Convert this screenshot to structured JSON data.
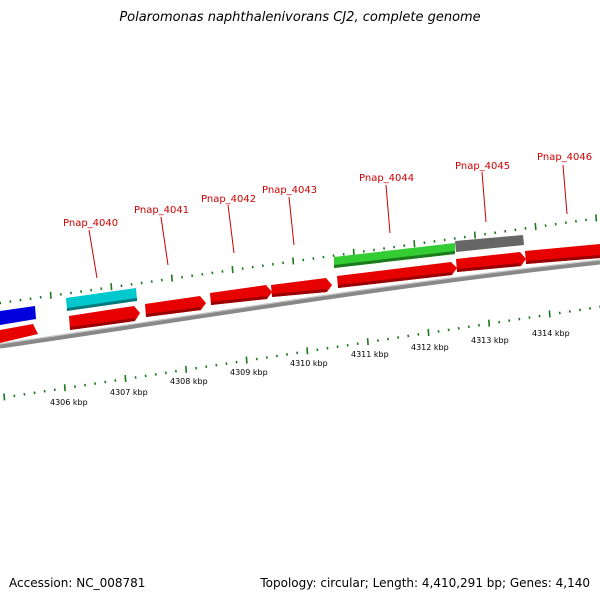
{
  "title": "Polaromonas naphthalenivorans CJ2, complete genome",
  "footer": {
    "accession": "Accession: NC_008781",
    "summary": "Topology: circular; Length: 4,410,291 bp; Genes: 4,140"
  },
  "colors": {
    "cds": "#e60000",
    "backbone": "#888888",
    "ticks": "#1a7a1a",
    "label": "#cc0000",
    "tan_feature": "#00c8cc",
    "green_feature": "#33cc33",
    "gray_feature": "#666666",
    "blue_feature": "#0000dd"
  },
  "gene_labels": [
    "Pnap_4040",
    "Pnap_4041",
    "Pnap_4042",
    "Pnap_4043",
    "Pnap_4044",
    "Pnap_4045",
    "Pnap_4046"
  ],
  "kbp_labels": [
    "4306 kbp",
    "4307 kbp",
    "4308 kbp",
    "4309 kbp",
    "4310 kbp",
    "4311 kbp",
    "4312 kbp",
    "4313 kbp",
    "4314 kbp"
  ]
}
